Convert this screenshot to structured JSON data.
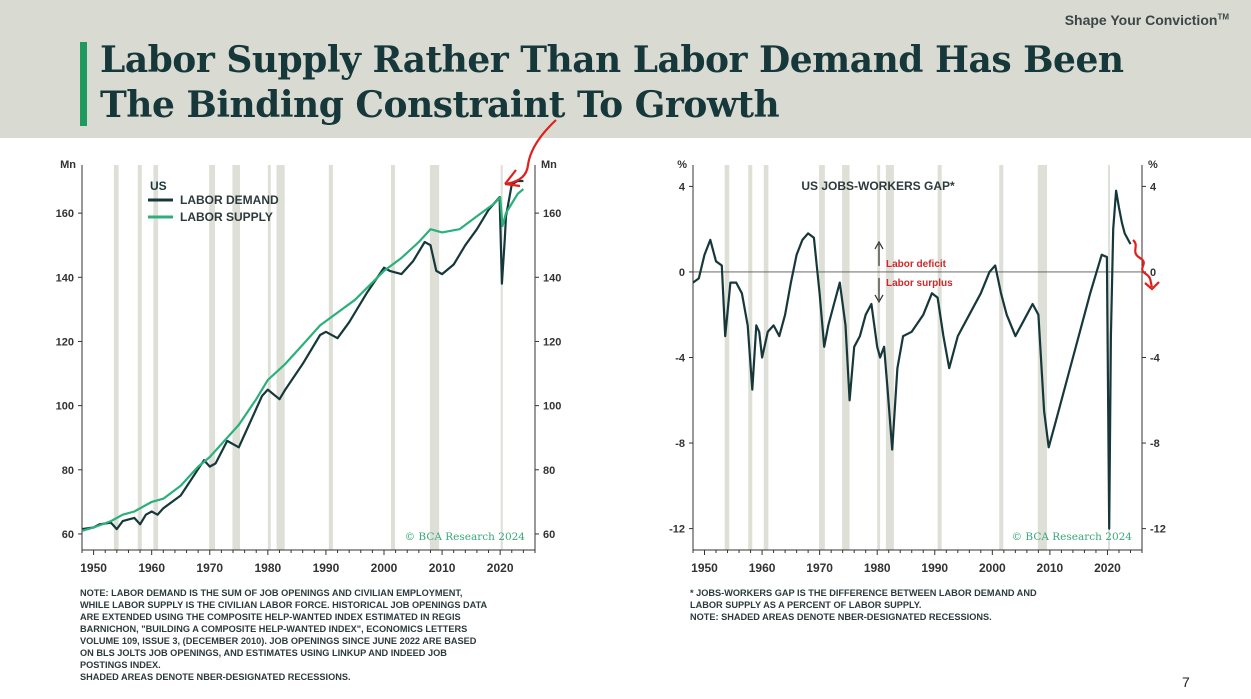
{
  "header": {
    "tagline": "Shape Your Conviction",
    "tagline_tm": "TM",
    "title_line1": "Labor Supply Rather Than Labor Demand Has Been",
    "title_line2": "The Binding Constraint To Growth"
  },
  "colors": {
    "header_bg": "#d9dbd2",
    "accent": "#1f9a5e",
    "demand": "#17383a",
    "supply": "#2bb07a",
    "recession": "#dedfd6",
    "annot": "#e0201c"
  },
  "chart_data": [
    {
      "type": "line",
      "title": "US",
      "ylabel": "Mn",
      "ylabel_right": "Mn",
      "xlim": [
        1948,
        2026
      ],
      "ylim": [
        55,
        175
      ],
      "x_ticks": [
        1950,
        1960,
        1970,
        1980,
        1990,
        2000,
        2010,
        2020
      ],
      "y_ticks": [
        60,
        80,
        100,
        120,
        140,
        160
      ],
      "recessions": [
        [
          1953.5,
          1954.3
        ],
        [
          1957.6,
          1958.3
        ],
        [
          1960.3,
          1961.1
        ],
        [
          1969.9,
          1970.9
        ],
        [
          1973.9,
          1975.2
        ],
        [
          1980.0,
          1980.5
        ],
        [
          1981.5,
          1982.9
        ],
        [
          1990.5,
          1991.2
        ],
        [
          2001.2,
          2001.9
        ],
        [
          2007.9,
          2009.5
        ],
        [
          2020.1,
          2020.4
        ]
      ],
      "legend": [
        "LABOR DEMAND",
        "LABOR SUPPLY"
      ],
      "legend_position": "top-left",
      "watermark": "© BCA Research 2024",
      "series": [
        {
          "name": "LABOR DEMAND",
          "color": "#17383a",
          "x": [
            1948,
            1950,
            1951,
            1953,
            1954,
            1955,
            1957,
            1958,
            1959,
            1960,
            1961,
            1962,
            1965,
            1969,
            1970,
            1971,
            1973,
            1975,
            1976,
            1979,
            1980,
            1982,
            1983,
            1986,
            1989,
            1990,
            1992,
            1994,
            1997,
            2000,
            2001,
            2003,
            2005,
            2007,
            2008,
            2009,
            2010,
            2012,
            2014,
            2016,
            2018,
            2019.9,
            2020.3,
            2020.8,
            2021,
            2022,
            2023,
            2024
          ],
          "y": [
            61.5,
            62,
            63,
            63.5,
            61.5,
            64,
            65,
            63,
            66,
            67,
            66,
            68,
            72,
            83,
            81,
            82,
            89,
            87,
            91,
            103,
            105,
            102,
            105,
            113,
            122,
            123,
            121,
            126,
            135,
            143,
            142,
            141,
            145,
            151,
            150,
            142,
            141,
            144,
            150,
            155,
            161,
            165,
            138,
            152,
            159,
            169,
            170,
            170
          ]
        },
        {
          "name": "LABOR SUPPLY",
          "color": "#2bb07a",
          "x": [
            1948,
            1950,
            1953,
            1955,
            1957,
            1960,
            1962,
            1965,
            1968,
            1970,
            1973,
            1975,
            1978,
            1980,
            1983,
            1986,
            1989,
            1992,
            1995,
            2000,
            2003,
            2006,
            2008,
            2010,
            2013,
            2016,
            2019,
            2020,
            2020.4,
            2021,
            2022,
            2023,
            2024
          ],
          "y": [
            61,
            62,
            64,
            66,
            67,
            70,
            71,
            75,
            81,
            84,
            90,
            94,
            102,
            108,
            113,
            119,
            125,
            129,
            133,
            142,
            146,
            151,
            155,
            154,
            155,
            159,
            163,
            165,
            156,
            160,
            163,
            166,
            167.5
          ]
        }
      ]
    },
    {
      "type": "line",
      "title": "US JOBS-WORKERS GAP*",
      "ylabel": "%",
      "ylabel_right": "%",
      "xlim": [
        1948,
        2026
      ],
      "ylim": [
        -13,
        5
      ],
      "x_ticks": [
        1950,
        1960,
        1970,
        1980,
        1990,
        2000,
        2010,
        2020
      ],
      "y_ticks": [
        -12,
        -8,
        -4,
        0,
        4
      ],
      "recessions": [
        [
          1953.5,
          1954.3
        ],
        [
          1957.6,
          1958.3
        ],
        [
          1960.3,
          1961.1
        ],
        [
          1969.9,
          1970.9
        ],
        [
          1973.9,
          1975.2
        ],
        [
          1980.0,
          1980.5
        ],
        [
          1981.5,
          1982.9
        ],
        [
          1990.5,
          1991.2
        ],
        [
          2001.2,
          2001.9
        ],
        [
          2007.9,
          2009.5
        ],
        [
          2020.1,
          2020.4
        ]
      ],
      "annotations": [
        "Labor deficit",
        "Labor surplus"
      ],
      "watermark": "© BCA Research 2024",
      "series": [
        {
          "name": "",
          "color": "#17383a",
          "x": [
            1948,
            1949,
            1950,
            1951,
            1952,
            1953,
            1953.6,
            1954.5,
            1955.5,
            1956.5,
            1957.5,
            1958.3,
            1959,
            1959.5,
            1960,
            1961,
            1962,
            1963,
            1964,
            1965,
            1966,
            1967,
            1968,
            1969,
            1970,
            1970.8,
            1971.5,
            1972.5,
            1973.5,
            1974.5,
            1975.2,
            1976,
            1977,
            1978,
            1979,
            1980,
            1980.5,
            1981.2,
            1981.8,
            1982.6,
            1983.5,
            1984.5,
            1986,
            1988,
            1989.5,
            1990.5,
            1991.5,
            1992.5,
            1994,
            1996,
            1998,
            1999.5,
            2000.5,
            2001.5,
            2002.5,
            2004,
            2006,
            2007,
            2008,
            2009,
            2009.8,
            2011,
            2013,
            2015,
            2017,
            2019,
            2019.9,
            2020.3,
            2020.6,
            2021,
            2021.5,
            2022,
            2022.5,
            2023,
            2024
          ],
          "y": [
            -0.5,
            -0.3,
            0.8,
            1.5,
            0.5,
            0.3,
            -3,
            -0.5,
            -0.5,
            -1,
            -2.5,
            -5.5,
            -2.5,
            -2.8,
            -4,
            -2.8,
            -2.5,
            -3,
            -2,
            -0.5,
            0.8,
            1.5,
            1.8,
            1.6,
            -1,
            -3.5,
            -2.5,
            -1.5,
            -0.5,
            -2.5,
            -6,
            -3.5,
            -3,
            -2,
            -1.5,
            -3.5,
            -4,
            -3.5,
            -5.5,
            -8.3,
            -4.5,
            -3,
            -2.8,
            -2,
            -1,
            -1.2,
            -3,
            -4.5,
            -3,
            -2,
            -1,
            0,
            0.3,
            -1,
            -2,
            -3,
            -2,
            -1.5,
            -2,
            -6.5,
            -8.2,
            -7,
            -5,
            -3,
            -1,
            0.8,
            0.7,
            -12,
            -3,
            2,
            3.8,
            3,
            2.3,
            1.8,
            1.3
          ]
        }
      ]
    }
  ],
  "notes": {
    "left": [
      "NOTE: LABOR DEMAND IS THE SUM OF JOB OPENINGS AND CIVILIAN EMPLOYMENT,",
      "WHILE LABOR SUPPLY IS THE CIVILIAN LABOR FORCE. HISTORICAL JOB OPENINGS DATA",
      "ARE EXTENDED USING THE COMPOSITE HELP-WANTED INDEX ESTIMATED IN REGIS",
      "BARNICHON, \"BUILDING A COMPOSITE HELP-WANTED INDEX\", ECONOMICS LETTERS",
      "VOLUME 109, ISSUE 3, (DECEMBER 2010). JOB OPENINGS SINCE JUNE 2022 ARE BASED",
      "ON BLS JOLTS JOB OPENINGS, AND ESTIMATES USING LINKUP AND INDEED JOB",
      "POSTINGS INDEX.",
      "SHADED AREAS DENOTE NBER-DESIGNATED RECESSIONS."
    ],
    "right": [
      "* JOBS-WORKERS GAP IS THE DIFFERENCE BETWEEN LABOR DEMAND AND",
      "LABOR SUPPLY AS A PERCENT OF LABOR SUPPLY.",
      "NOTE: SHADED AREAS DENOTE NBER-DESIGNATED RECESSIONS."
    ]
  },
  "page_number": "7"
}
